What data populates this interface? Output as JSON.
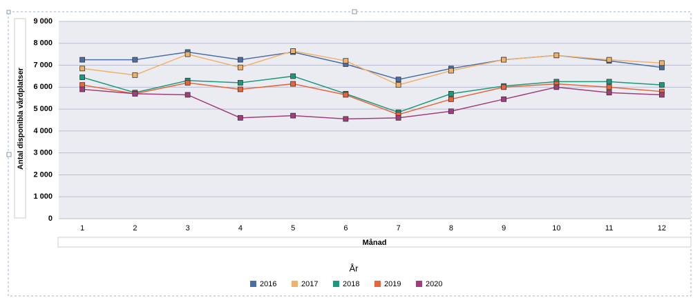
{
  "chart_data": {
    "type": "line",
    "y_label": "Antal disponibla vårdplatser",
    "x_label": "Månad",
    "legend_title": "År",
    "legend_position": "bottom",
    "grid": true,
    "categories": [
      1,
      2,
      3,
      4,
      5,
      6,
      7,
      8,
      9,
      10,
      11,
      12
    ],
    "ylim": [
      0,
      9000
    ],
    "yticks": [
      0,
      {
        "value": 1000,
        "label": "1 000"
      },
      {
        "value": 2000,
        "label": "2 000"
      },
      {
        "value": 3000,
        "label": "3 000"
      },
      {
        "value": 4000,
        "label": "4 000"
      },
      {
        "value": 5000,
        "label": "5 000"
      },
      {
        "value": 6000,
        "label": "6 000"
      },
      {
        "value": 7000,
        "label": "7 000"
      },
      {
        "value": 8000,
        "label": "8 000"
      },
      {
        "value": 9000,
        "label": "9 000"
      }
    ],
    "series": [
      {
        "name": "2016",
        "color": "#4a6fa5",
        "values": [
          7250,
          7250,
          7600,
          7250,
          7600,
          7050,
          6350,
          6850,
          7250,
          7450,
          7200,
          6900
        ]
      },
      {
        "name": "2017",
        "color": "#f0b26b",
        "values": [
          6850,
          6550,
          7500,
          6900,
          7650,
          7200,
          6100,
          6750,
          7250,
          7450,
          7250,
          7100
        ]
      },
      {
        "name": "2018",
        "color": "#1a9a7a",
        "values": [
          6450,
          5750,
          6300,
          6200,
          6500,
          5700,
          4850,
          5700,
          6050,
          6250,
          6250,
          6100
        ]
      },
      {
        "name": "2019",
        "color": "#e8643a",
        "values": [
          6100,
          5700,
          6200,
          5900,
          6150,
          5650,
          4750,
          5450,
          6000,
          6150,
          6000,
          5800
        ]
      },
      {
        "name": "2020",
        "color": "#a13d7a",
        "values": [
          5900,
          5700,
          5650,
          4600,
          4700,
          4550,
          4600,
          4900,
          5450,
          6000,
          5750,
          5650
        ]
      }
    ]
  }
}
